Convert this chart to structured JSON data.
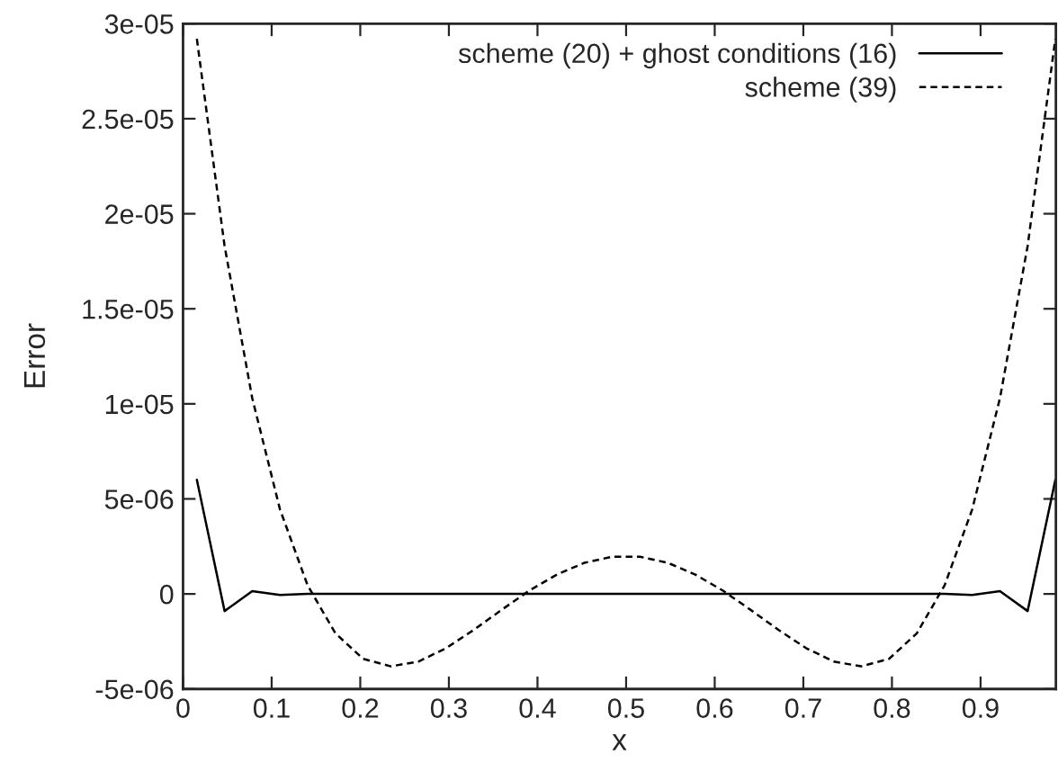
{
  "chart_data": {
    "type": "line",
    "xlabel": "x",
    "ylabel": "Error",
    "x": [
      0.0156,
      0.0469,
      0.0781,
      0.1094,
      0.1406,
      0.1719,
      0.2031,
      0.2344,
      0.2656,
      0.2969,
      0.3281,
      0.3594,
      0.3906,
      0.4219,
      0.4531,
      0.4844,
      0.5156,
      0.5469,
      0.5781,
      0.6094,
      0.6406,
      0.6719,
      0.7031,
      0.7344,
      0.7656,
      0.7969,
      0.8281,
      0.8594,
      0.8906,
      0.9219,
      0.9531,
      0.9844
    ],
    "series": [
      {
        "name": "scheme (20) + ghost conditions (16)",
        "color": "#000000",
        "line_style": "solid",
        "values": [
          6e-06,
          -9e-07,
          1.5e-07,
          -5e-08,
          0,
          0,
          0,
          0,
          0,
          0,
          0,
          0,
          0,
          0,
          0,
          0,
          0,
          0,
          0,
          0,
          0,
          0,
          0,
          0,
          0,
          0,
          0,
          0,
          -5e-08,
          1.5e-07,
          -9e-07,
          6e-06
        ]
      },
      {
        "name": "scheme (39)",
        "color": "#000000",
        "line_style": "dashed",
        "values": [
          2.92e-05,
          1.83e-05,
          1.03e-05,
          4.45e-06,
          4.5e-07,
          -2.07e-06,
          -3.41e-06,
          -3.81e-06,
          -3.56e-06,
          -2.85e-06,
          -1.89e-06,
          -8.4e-07,
          1.7e-07,
          1.02e-06,
          1.64e-06,
          1.96e-06,
          1.96e-06,
          1.64e-06,
          1.02e-06,
          1.7e-07,
          -8.4e-07,
          -1.89e-06,
          -2.85e-06,
          -3.56e-06,
          -3.81e-06,
          -3.41e-06,
          -2.07e-06,
          4.5e-07,
          4.45e-06,
          1.03e-05,
          1.83e-05,
          2.92e-05
        ]
      }
    ],
    "xlim": [
      0,
      0.985
    ],
    "xticks": [
      0,
      0.1,
      0.2,
      0.3,
      0.4,
      0.5,
      0.6,
      0.7,
      0.8,
      0.9
    ],
    "ylim": [
      -5e-06,
      3e-05
    ],
    "yticks": [
      {
        "value": -5e-06,
        "label": "-5e-06"
      },
      0,
      {
        "value": 5e-06,
        "label": "5e-06"
      },
      {
        "value": 1e-05,
        "label": "1e-05"
      },
      {
        "value": 1.5e-05,
        "label": "1.5e-05"
      },
      {
        "value": 2e-05,
        "label": "2e-05"
      },
      {
        "value": 2.5e-05,
        "label": "2.5e-05"
      },
      {
        "value": 3e-05,
        "label": "3e-05"
      }
    ],
    "grid": false,
    "legend": "top right"
  }
}
